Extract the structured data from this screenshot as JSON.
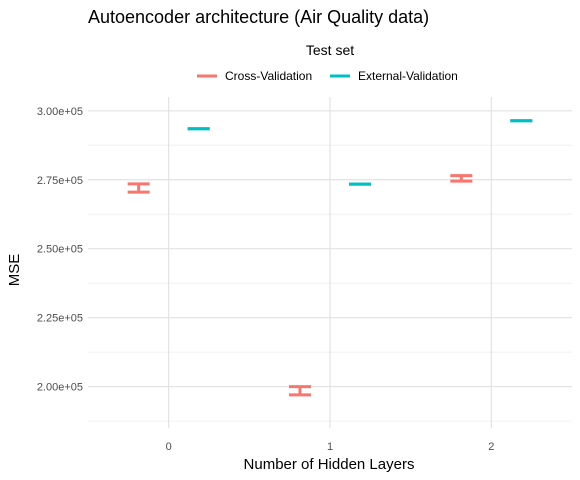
{
  "chart_data": {
    "type": "errorbar",
    "title": "Autoencoder architecture (Air Quality data)",
    "xlabel": "Number of Hidden Layers",
    "ylabel": "MSE",
    "categories": [
      "0",
      "1",
      "2"
    ],
    "ylim": [
      185000,
      305000
    ],
    "yticks": [
      200000,
      225000,
      250000,
      275000,
      300000
    ],
    "ytick_labels": [
      "2.00e+05",
      "2.25e+05",
      "2.50e+05",
      "2.75e+05",
      "3.00e+05"
    ],
    "grid": true,
    "legend": {
      "title": "Test set",
      "position": "top"
    },
    "series": [
      {
        "name": "Cross-Validation",
        "color": "#F8766D",
        "ymin": [
          270500,
          197000,
          274500
        ],
        "ymax": [
          273500,
          200000,
          276500
        ]
      },
      {
        "name": "External-Validation",
        "color": "#00BFC4",
        "ymin": [
          293500,
          273400,
          296400
        ],
        "ymax": [
          293500,
          273400,
          296400
        ]
      }
    ]
  }
}
